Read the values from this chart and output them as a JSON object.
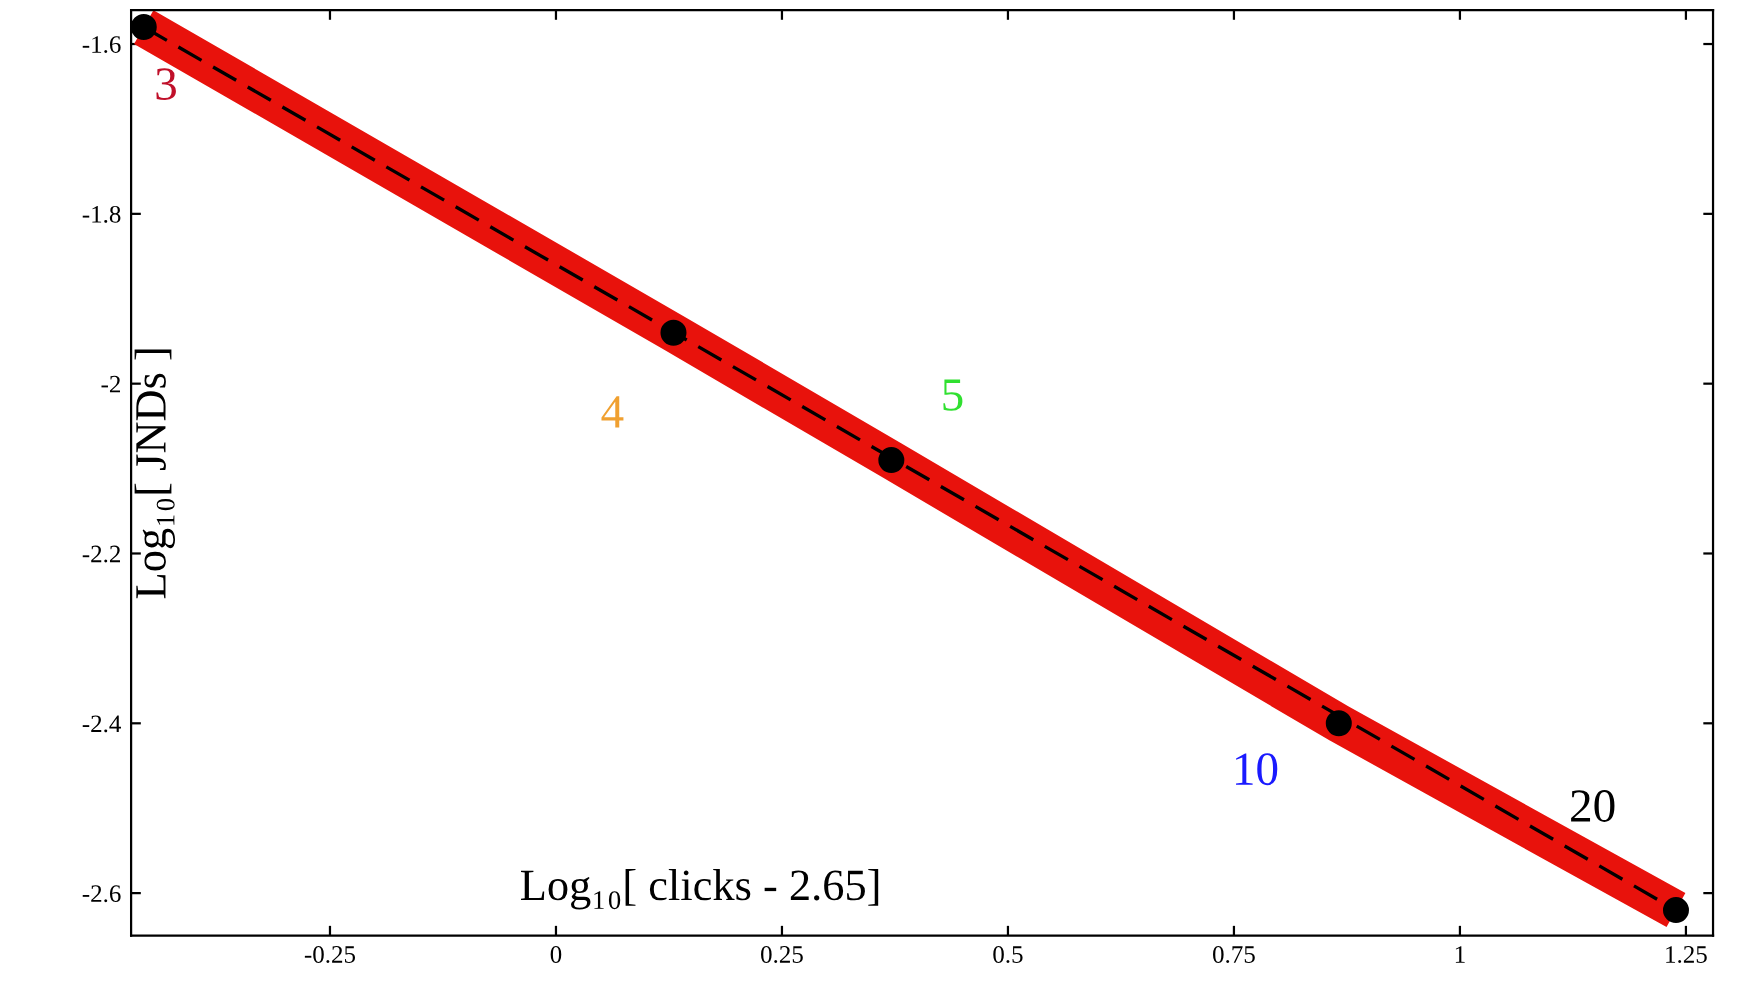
{
  "chart_data": {
    "type": "line",
    "xlabel": "Log₁₀[ clicks - 2.65]",
    "ylabel": "Log₁₀[ JNDs ]",
    "xlim": [
      -0.47,
      1.28
    ],
    "ylim": [
      -2.65,
      -1.56
    ],
    "xticks": [
      -0.25,
      0,
      0.25,
      0.5,
      0.75,
      1,
      1.25
    ],
    "yticks": [
      -2.6,
      -2.4,
      -2.2,
      -2,
      -1.8,
      -1.6
    ],
    "grid": false,
    "legend": false,
    "series": [
      {
        "color": "#e8120c",
        "x": [
          -0.456,
          0.13,
          0.371,
          0.866,
          1.239
        ],
        "values": [
          -1.58,
          -1.94,
          -2.09,
          -2.4,
          -2.62
        ]
      },
      {
        "type": "line",
        "color": "#000000",
        "line_style": "dashed",
        "x": [
          -0.456,
          1.239
        ],
        "values": [
          -1.58,
          -2.62
        ]
      },
      {
        "type": "scatter",
        "color": "#000000",
        "marker": "circle",
        "x": [
          -0.456,
          0.13,
          0.371,
          0.866,
          1.239
        ],
        "values": [
          -1.58,
          -1.94,
          -2.09,
          -2.4,
          -2.62
        ]
      }
    ],
    "annotations": [
      {
        "text": "3",
        "x": -0.456,
        "y": -1.58
      },
      {
        "text": "4",
        "x": 0.13,
        "y": -1.94
      },
      {
        "text": "5",
        "x": 0.371,
        "y": -2.09
      },
      {
        "text": "10",
        "x": 0.866,
        "y": -2.4
      },
      {
        "text": "20",
        "x": 1.239,
        "y": -2.62
      }
    ]
  }
}
